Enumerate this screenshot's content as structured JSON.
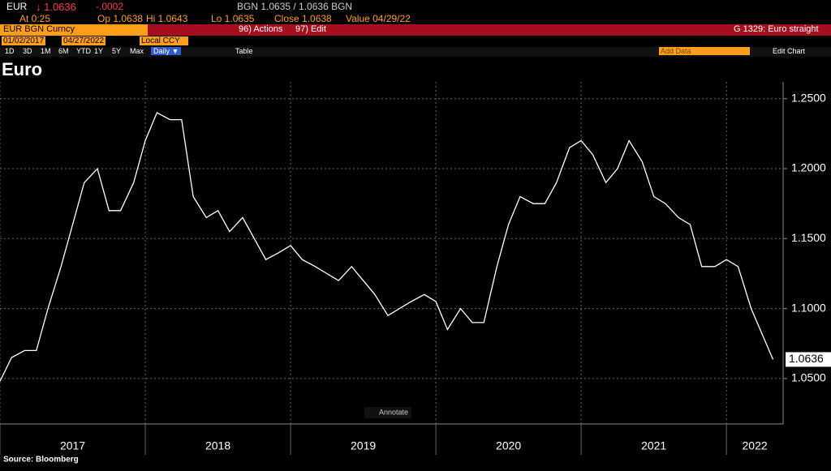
{
  "header": {
    "ticker": "EUR",
    "last": "↓ 1.0636",
    "change": "-.0002",
    "bid_ask": "BGN 1.0635 / 1.0636 BGN",
    "at": "At 0:25",
    "open": "Op 1.0638",
    "high": "Hi 1.0643",
    "low": "Lo 1.0635",
    "close": "Close 1.0638",
    "value_date": "Value 04/29/22"
  },
  "toolbar": {
    "security": "EUR BGN Curncy",
    "actions": "96) Actions",
    "edit": "97) Edit",
    "chart_name": "G 1329: Euro straight",
    "start_date": "01/02/2017",
    "end_date": "04/27/2022",
    "currency": "Local CCY",
    "ranges": [
      "1D",
      "3D",
      "1M",
      "6M",
      "YTD",
      "1Y",
      "5Y",
      "Max"
    ],
    "frequency": "Daily ▼",
    "table": "Table",
    "add_data": "Add Data",
    "edit_chart": "Edit Chart"
  },
  "annotate": "Annotate",
  "source": "Source: Bloomberg",
  "chart_data": {
    "type": "line",
    "title": "Euro",
    "x": [
      2017.0,
      2017.08,
      2017.17,
      2017.25,
      2017.33,
      2017.42,
      2017.5,
      2017.58,
      2017.67,
      2017.75,
      2017.83,
      2017.92,
      2018.0,
      2018.08,
      2018.17,
      2018.25,
      2018.33,
      2018.42,
      2018.5,
      2018.58,
      2018.67,
      2018.75,
      2018.83,
      2018.92,
      2019.0,
      2019.08,
      2019.17,
      2019.25,
      2019.33,
      2019.42,
      2019.5,
      2019.58,
      2019.67,
      2019.75,
      2019.83,
      2019.92,
      2020.0,
      2020.08,
      2020.17,
      2020.25,
      2020.33,
      2020.42,
      2020.5,
      2020.58,
      2020.67,
      2020.75,
      2020.83,
      2020.92,
      2021.0,
      2021.08,
      2021.17,
      2021.25,
      2021.33,
      2021.42,
      2021.5,
      2021.58,
      2021.67,
      2021.75,
      2021.83,
      2021.92,
      2022.0,
      2022.08,
      2022.17,
      2022.32
    ],
    "series": [
      {
        "name": "EUR",
        "color": "#ffffff",
        "values": [
          1.048,
          1.065,
          1.07,
          1.07,
          1.1,
          1.13,
          1.16,
          1.19,
          1.2,
          1.17,
          1.17,
          1.19,
          1.22,
          1.24,
          1.235,
          1.235,
          1.18,
          1.165,
          1.17,
          1.155,
          1.165,
          1.15,
          1.135,
          1.14,
          1.145,
          1.135,
          1.13,
          1.125,
          1.12,
          1.13,
          1.12,
          1.11,
          1.095,
          1.1,
          1.105,
          1.11,
          1.105,
          1.085,
          1.1,
          1.09,
          1.09,
          1.13,
          1.16,
          1.18,
          1.175,
          1.175,
          1.19,
          1.215,
          1.22,
          1.21,
          1.19,
          1.2,
          1.22,
          1.205,
          1.18,
          1.175,
          1.165,
          1.16,
          1.13,
          1.13,
          1.135,
          1.13,
          1.1,
          1.0636
        ]
      }
    ],
    "xlim": [
      2017.0,
      2022.39
    ],
    "xticks": [
      {
        "value": 2017,
        "label": "2017"
      },
      {
        "value": 2018,
        "label": "2018"
      },
      {
        "value": 2019,
        "label": "2019"
      },
      {
        "value": 2020,
        "label": "2020"
      },
      {
        "value": 2021,
        "label": "2021"
      },
      {
        "value": 2022,
        "label": "2022"
      }
    ],
    "ylim": [
      1.0175,
      1.262
    ],
    "yticks": [
      {
        "value": 1.05,
        "label": "1.0500"
      },
      {
        "value": 1.1,
        "label": "1.1000"
      },
      {
        "value": 1.15,
        "label": "1.1500"
      },
      {
        "value": 1.2,
        "label": "1.2000"
      },
      {
        "value": 1.25,
        "label": "1.2500"
      }
    ],
    "grid": true
  }
}
